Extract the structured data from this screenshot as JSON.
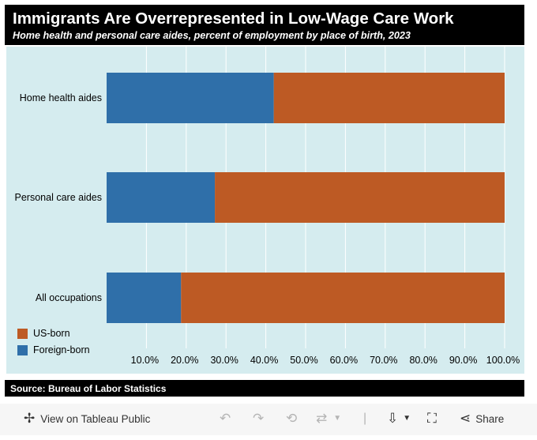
{
  "header": {
    "title": "Immigrants Are Overrepresented in Low-Wage Care Work",
    "subtitle": "Home health and personal care aides, percent of employment by place of birth, 2023"
  },
  "chart_data": {
    "type": "bar",
    "orientation": "horizontal",
    "stacked": true,
    "categories": [
      "Home health aides",
      "Personal care aides",
      "All occupations"
    ],
    "series": [
      {
        "name": "Foreign-born",
        "values": [
          42.0,
          27.2,
          18.7
        ],
        "color": "#2f6fa9"
      },
      {
        "name": "US-born",
        "values": [
          58.0,
          72.8,
          81.3
        ],
        "color": "#bd5a24"
      }
    ],
    "x_ticks": [
      "10.0%",
      "20.0%",
      "30.0%",
      "40.0%",
      "50.0%",
      "60.0%",
      "70.0%",
      "80.0%",
      "90.0%",
      "100.0%"
    ],
    "xlim": [
      0,
      100
    ],
    "grid": true,
    "legend_position": "bottom-left",
    "legend": [
      {
        "label": "US-born",
        "color": "#bd5a24"
      },
      {
        "label": "Foreign-born",
        "color": "#2f6fa9"
      }
    ]
  },
  "footer": {
    "source": "Source: Bureau of Labor Statistics"
  },
  "toolbar": {
    "view_label": "View on Tableau Public",
    "share_label": "Share",
    "icons": [
      "tableau-logo-icon",
      "undo-icon",
      "redo-icon",
      "revert-icon",
      "refresh-icon",
      "download-icon",
      "fullscreen-icon",
      "share-icon"
    ]
  }
}
